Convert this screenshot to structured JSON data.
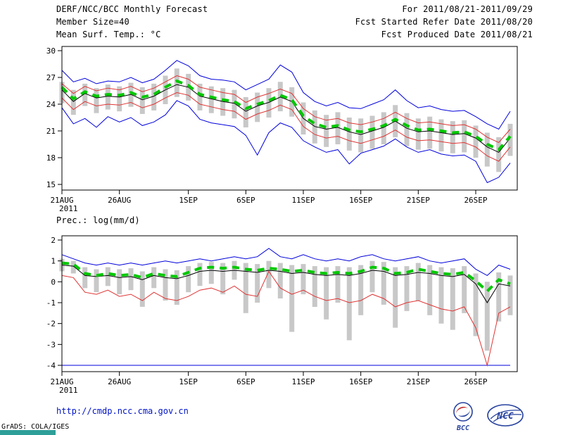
{
  "header": {
    "title": "DERF/NCC/BCC Monthly Forecast",
    "member_size": "Member Size=40",
    "for_range": "For 2011/08/21-2011/09/29",
    "refer_date": "Fcst Started Refer Date 2011/08/20",
    "produced_date": "Fcst Produced Date 2011/08/21"
  },
  "footer": {
    "url": "http://cmdp.ncc.cma.gov.cn",
    "grads_credit": "GrADS: COLA/IGES",
    "logos": [
      {
        "id": "bcc",
        "label": "BCC"
      },
      {
        "id": "ncc",
        "label": "NCC"
      }
    ]
  },
  "colors": {
    "blue": "#0000dc",
    "red": "#e03434",
    "green": "#00c800",
    "black": "#000000",
    "bar_gray": "#c8c8c8",
    "url_blue": "#0014c8",
    "teal": "#2f9f99",
    "logo_blue": "#27429e",
    "logo_red": "#c32a2a"
  },
  "chart_data": [
    {
      "type": "line",
      "title": "Mean Surf. Temp.: °C",
      "x_year_label": "2011",
      "n_days": 40,
      "x_tick_labels": [
        "21AUG",
        "26AUG",
        "1SEP",
        "6SEP",
        "11SEP",
        "16SEP",
        "21SEP",
        "26SEP"
      ],
      "x_tick_day_index": [
        0,
        5,
        11,
        16,
        21,
        26,
        31,
        36
      ],
      "ylim": [
        15,
        30
      ],
      "yticks": [
        15,
        18,
        21,
        24,
        27,
        30
      ],
      "legend": "off",
      "grid": "off",
      "bars": {
        "name": "ensemble-member-spread",
        "color": "#c8c8c8",
        "top": [
          26.5,
          25.6,
          26.3,
          25.8,
          26.2,
          26.0,
          26.4,
          25.9,
          26.3,
          27.2,
          28.0,
          27.4,
          26.3,
          26.0,
          25.8,
          25.6,
          24.8,
          25.3,
          25.8,
          26.5,
          25.9,
          24.2,
          23.3,
          22.8,
          23.1,
          22.5,
          22.4,
          22.7,
          23.1,
          23.9,
          23.0,
          22.4,
          22.6,
          22.3,
          22.1,
          22.2,
          21.6,
          20.8,
          20.3,
          21.8
        ],
        "bottom": [
          24.1,
          22.8,
          23.8,
          23.0,
          23.4,
          23.2,
          23.7,
          22.9,
          23.3,
          24.0,
          24.8,
          24.4,
          23.3,
          23.0,
          22.7,
          22.4,
          21.4,
          22.0,
          22.5,
          23.2,
          22.6,
          20.6,
          19.6,
          19.2,
          19.5,
          18.8,
          18.6,
          19.0,
          19.5,
          20.3,
          19.3,
          18.9,
          19.0,
          18.7,
          18.5,
          18.6,
          18.0,
          17.0,
          16.4,
          18.2
        ]
      },
      "series": [
        {
          "name": "ensemble-min",
          "color": "#0000dc",
          "width": 1,
          "dash": "",
          "values": [
            23.6,
            21.8,
            22.4,
            21.4,
            22.6,
            22.0,
            22.5,
            21.6,
            22.0,
            22.8,
            24.4,
            23.8,
            22.3,
            21.9,
            21.7,
            21.5,
            20.5,
            18.3,
            20.8,
            21.9,
            21.4,
            19.9,
            19.2,
            18.6,
            18.9,
            17.3,
            18.5,
            18.9,
            19.3,
            20.1,
            19.2,
            18.6,
            18.9,
            18.4,
            18.2,
            18.3,
            17.6,
            15.2,
            15.8,
            17.4
          ]
        },
        {
          "name": "ensemble-max",
          "color": "#0000dc",
          "width": 1,
          "dash": "",
          "values": [
            27.8,
            26.5,
            26.9,
            26.3,
            26.6,
            26.5,
            27.0,
            26.4,
            26.8,
            27.8,
            28.9,
            28.3,
            27.2,
            26.8,
            26.7,
            26.5,
            25.6,
            26.2,
            26.8,
            28.4,
            27.6,
            25.3,
            24.3,
            23.8,
            24.2,
            23.6,
            23.5,
            24.0,
            24.5,
            25.6,
            24.4,
            23.6,
            23.8,
            23.4,
            23.2,
            23.3,
            22.6,
            21.8,
            21.2,
            23.2
          ]
        },
        {
          "name": "lower-spread",
          "color": "#e03434",
          "width": 1,
          "dash": "",
          "values": [
            24.7,
            23.4,
            24.3,
            23.8,
            24.0,
            23.9,
            24.2,
            23.6,
            24.0,
            24.7,
            25.3,
            25.0,
            24.0,
            23.7,
            23.4,
            23.2,
            22.3,
            22.9,
            23.3,
            23.9,
            23.4,
            21.5,
            20.6,
            20.2,
            20.4,
            19.9,
            19.6,
            20.0,
            20.4,
            21.1,
            20.3,
            19.9,
            20.0,
            19.8,
            19.6,
            19.7,
            19.2,
            18.2,
            17.6,
            19.2
          ]
        },
        {
          "name": "upper-spread",
          "color": "#e03434",
          "width": 1,
          "dash": "",
          "values": [
            26.3,
            25.2,
            26.0,
            25.5,
            25.8,
            25.6,
            26.0,
            25.4,
            25.8,
            26.5,
            27.2,
            26.8,
            25.9,
            25.6,
            25.3,
            25.1,
            24.2,
            24.8,
            25.2,
            25.7,
            25.2,
            23.5,
            22.6,
            22.2,
            22.4,
            21.9,
            21.7,
            22.0,
            22.4,
            23.1,
            22.4,
            21.9,
            22.0,
            21.8,
            21.6,
            21.7,
            21.2,
            20.3,
            19.7,
            21.2
          ]
        },
        {
          "name": "ensemble-median",
          "color": "#000000",
          "width": 1,
          "dash": "",
          "values": [
            25.6,
            24.3,
            25.2,
            24.7,
            24.9,
            24.8,
            25.1,
            24.5,
            24.9,
            25.6,
            26.2,
            25.9,
            24.9,
            24.6,
            24.3,
            24.1,
            23.2,
            23.8,
            24.2,
            24.8,
            24.3,
            22.4,
            21.5,
            21.2,
            21.4,
            20.9,
            20.6,
            21.0,
            21.4,
            22.1,
            21.3,
            20.9,
            21.0,
            20.8,
            20.6,
            20.7,
            20.2,
            19.2,
            18.6,
            20.2
          ]
        },
        {
          "name": "ensemble-mean",
          "color": "#00c800",
          "width": 4,
          "dash": "10,8",
          "values": [
            25.9,
            24.6,
            25.4,
            24.9,
            25.1,
            25.0,
            25.3,
            24.8,
            25.1,
            25.9,
            26.6,
            26.1,
            25.1,
            24.8,
            24.5,
            24.3,
            23.5,
            24.0,
            24.4,
            25.0,
            24.5,
            22.7,
            21.8,
            21.4,
            21.6,
            21.1,
            20.9,
            21.2,
            21.6,
            22.3,
            21.6,
            21.1,
            21.2,
            21.0,
            20.8,
            20.9,
            20.4,
            19.5,
            18.9,
            20.4
          ]
        }
      ]
    },
    {
      "type": "line",
      "title": "Prec.: log(mm/d)",
      "x_year_label": "2011",
      "n_days": 40,
      "x_tick_labels": [
        "21AUG",
        "26AUG",
        "1SEP",
        "6SEP",
        "11SEP",
        "16SEP",
        "21SEP",
        "26SEP"
      ],
      "x_tick_day_index": [
        0,
        5,
        11,
        16,
        21,
        26,
        31,
        36
      ],
      "ylim": [
        -4,
        2
      ],
      "yticks": [
        -4,
        -3,
        -2,
        -1,
        0,
        1,
        2
      ],
      "legend": "off",
      "grid": "off",
      "bars": {
        "name": "ensemble-member-spread",
        "color": "#c8c8c8",
        "top": [
          1.1,
          1.0,
          0.7,
          0.6,
          0.7,
          0.6,
          0.65,
          0.5,
          0.7,
          0.6,
          0.55,
          0.75,
          0.9,
          0.95,
          0.9,
          1.0,
          0.9,
          0.85,
          1.0,
          0.9,
          0.8,
          0.85,
          0.75,
          0.7,
          0.75,
          0.7,
          0.8,
          1.0,
          0.95,
          0.7,
          0.75,
          0.9,
          0.8,
          0.7,
          0.65,
          0.75,
          0.4,
          0.0,
          0.45,
          0.3
        ],
        "bottom": [
          0.5,
          0.4,
          -0.3,
          -0.5,
          -0.2,
          -0.6,
          -0.4,
          -1.2,
          -0.3,
          -0.9,
          -1.1,
          -0.5,
          -0.2,
          -0.1,
          -0.6,
          0.1,
          -1.5,
          -1.0,
          -0.3,
          -0.8,
          -2.4,
          -0.6,
          -1.2,
          -1.8,
          -1.0,
          -2.8,
          -1.6,
          -0.5,
          -1.1,
          -2.2,
          -1.4,
          -0.9,
          -1.6,
          -2.0,
          -2.3,
          -1.5,
          -2.6,
          -3.3,
          -1.9,
          -1.6
        ]
      },
      "series": [
        {
          "name": "ensemble-min",
          "color": "#0000dc",
          "width": 1,
          "dash": "",
          "values": [
            -4.0,
            -4.0,
            -4.0,
            -4.0,
            -4.0,
            -4.0,
            -4.0,
            -4.0,
            -4.0,
            -4.0,
            -4.0,
            -4.0,
            -4.0,
            -4.0,
            -4.0,
            -4.0,
            -4.0,
            -4.0,
            -4.0,
            -4.0,
            -4.0,
            -4.0,
            -4.0,
            -4.0,
            -4.0,
            -4.0,
            -4.0,
            -4.0,
            -4.0,
            -4.0,
            -4.0,
            -4.0,
            -4.0,
            -4.0,
            -4.0,
            -4.0,
            -4.0,
            -4.0,
            -4.0,
            -4.0
          ]
        },
        {
          "name": "ensemble-max",
          "color": "#0000dc",
          "width": 1,
          "dash": "",
          "values": [
            1.3,
            1.1,
            0.9,
            0.8,
            0.9,
            0.8,
            0.9,
            0.8,
            0.9,
            1.0,
            0.9,
            1.0,
            1.1,
            1.0,
            1.1,
            1.2,
            1.1,
            1.2,
            1.6,
            1.2,
            1.1,
            1.3,
            1.1,
            1.0,
            1.1,
            1.0,
            1.2,
            1.3,
            1.1,
            1.0,
            1.1,
            1.2,
            1.0,
            0.9,
            1.0,
            1.1,
            0.6,
            0.3,
            0.8,
            0.6
          ]
        },
        {
          "name": "lower-spread",
          "color": "#e03434",
          "width": 1,
          "dash": "",
          "values": [
            0.3,
            0.2,
            -0.5,
            -0.6,
            -0.4,
            -0.7,
            -0.6,
            -0.9,
            -0.5,
            -0.8,
            -0.9,
            -0.7,
            -0.4,
            -0.3,
            -0.5,
            -0.2,
            -0.6,
            -0.7,
            0.5,
            -0.3,
            -0.6,
            -0.4,
            -0.7,
            -0.9,
            -0.8,
            -1.0,
            -0.9,
            -0.6,
            -0.8,
            -1.2,
            -1.0,
            -0.9,
            -1.1,
            -1.3,
            -1.4,
            -1.2,
            -2.2,
            -4.0,
            -1.5,
            -1.2
          ]
        },
        {
          "name": "ensemble-median",
          "color": "#000000",
          "width": 1,
          "dash": "",
          "values": [
            0.8,
            0.75,
            0.3,
            0.25,
            0.3,
            0.2,
            0.25,
            0.1,
            0.3,
            0.2,
            0.15,
            0.3,
            0.5,
            0.55,
            0.5,
            0.55,
            0.5,
            0.45,
            0.55,
            0.5,
            0.4,
            0.45,
            0.35,
            0.3,
            0.35,
            0.3,
            0.4,
            0.55,
            0.5,
            0.3,
            0.35,
            0.45,
            0.4,
            0.3,
            0.25,
            0.35,
            -0.1,
            -1.0,
            -0.1,
            -0.2
          ]
        },
        {
          "name": "ensemble-mean",
          "color": "#00c800",
          "width": 4,
          "dash": "10,8",
          "values": [
            0.9,
            0.85,
            0.4,
            0.3,
            0.4,
            0.3,
            0.35,
            0.2,
            0.4,
            0.3,
            0.25,
            0.45,
            0.65,
            0.7,
            0.65,
            0.7,
            0.6,
            0.55,
            0.65,
            0.6,
            0.5,
            0.55,
            0.45,
            0.4,
            0.45,
            0.4,
            0.5,
            0.7,
            0.65,
            0.4,
            0.45,
            0.6,
            0.5,
            0.4,
            0.35,
            0.45,
            0.05,
            -0.45,
            0.1,
            -0.1
          ]
        }
      ]
    }
  ]
}
